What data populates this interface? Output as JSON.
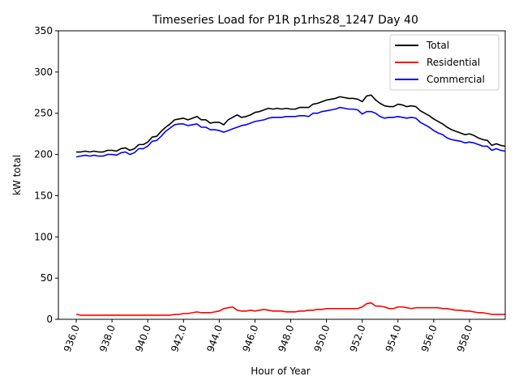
{
  "chart_data": {
    "type": "line",
    "title": "Timeseries Load for P1R p1rhs28_1247  Day 40",
    "xlabel": "Hour of Year",
    "ylabel": "kW total",
    "xlim": [
      935.0,
      960.0
    ],
    "ylim": [
      0,
      350
    ],
    "x_start": 936.0,
    "x_step": 0.25,
    "xticks": [
      936.0,
      938.0,
      940.0,
      942.0,
      944.0,
      946.0,
      948.0,
      950.0,
      952.0,
      954.0,
      956.0,
      958.0
    ],
    "xtick_labels": [
      "936.0",
      "938.0",
      "940.0",
      "942.0",
      "944.0",
      "946.0",
      "948.0",
      "950.0",
      "952.0",
      "954.0",
      "956.0",
      "958.0"
    ],
    "yticks": [
      0,
      50,
      100,
      150,
      200,
      250,
      300,
      350
    ],
    "ytick_labels": [
      "0",
      "50",
      "100",
      "150",
      "200",
      "250",
      "300",
      "350"
    ],
    "legend_position": "upper right",
    "series": [
      {
        "name": "Total",
        "color": "#000000",
        "values": [
          203,
          203,
          204,
          203,
          204,
          203,
          203,
          205,
          205,
          204,
          207,
          208,
          205,
          207,
          212,
          212,
          215,
          221,
          222,
          228,
          233,
          237,
          242,
          243,
          244,
          242,
          244,
          246,
          242,
          242,
          238,
          239,
          239,
          236,
          242,
          245,
          248,
          245,
          246,
          248,
          251,
          252,
          254,
          256,
          255,
          256,
          255,
          256,
          255,
          255,
          257,
          257,
          257,
          261,
          262,
          264,
          266,
          267,
          268,
          270,
          269,
          268,
          268,
          267,
          264,
          271,
          272,
          266,
          262,
          259,
          258,
          258,
          261,
          260,
          258,
          259,
          258,
          253,
          250,
          247,
          243,
          240,
          237,
          233,
          230,
          228,
          226,
          224,
          225,
          223,
          220,
          218,
          217,
          211,
          213,
          211,
          210
        ]
      },
      {
        "name": "Residential",
        "color": "#ff0000",
        "values": [
          6,
          5,
          5,
          5,
          5,
          5,
          5,
          5,
          5,
          5,
          5,
          5,
          5,
          5,
          5,
          5,
          5,
          5,
          5,
          5,
          5,
          5,
          6,
          6,
          7,
          7,
          8,
          9,
          8,
          8,
          8,
          9,
          10,
          13,
          14,
          15,
          11,
          10,
          10,
          11,
          10,
          11,
          12,
          11,
          10,
          10,
          10,
          9,
          9,
          9,
          10,
          10,
          11,
          11,
          12,
          12,
          13,
          13,
          13,
          13,
          13,
          13,
          13,
          13,
          15,
          19,
          20,
          16,
          16,
          15,
          13,
          13,
          15,
          15,
          14,
          13,
          14,
          14,
          14,
          14,
          14,
          14,
          13,
          13,
          12,
          11,
          11,
          10,
          10,
          9,
          8,
          8,
          7,
          6,
          6,
          6,
          6
        ]
      },
      {
        "name": "Commercial",
        "color": "#0000ff",
        "values": [
          197,
          198,
          199,
          198,
          199,
          198,
          198,
          200,
          200,
          199,
          202,
          203,
          200,
          202,
          207,
          207,
          210,
          216,
          217,
          222,
          228,
          232,
          236,
          237,
          237,
          235,
          236,
          237,
          233,
          233,
          230,
          230,
          229,
          227,
          229,
          231,
          233,
          235,
          236,
          238,
          240,
          241,
          242,
          244,
          245,
          245,
          245,
          246,
          246,
          246,
          247,
          247,
          246,
          250,
          250,
          252,
          253,
          254,
          255,
          257,
          256,
          255,
          255,
          254,
          249,
          252,
          252,
          250,
          246,
          244,
          245,
          245,
          246,
          245,
          244,
          245,
          244,
          239,
          236,
          233,
          229,
          226,
          224,
          220,
          218,
          217,
          216,
          214,
          215,
          214,
          212,
          210,
          210,
          205,
          207,
          205,
          204
        ]
      }
    ]
  }
}
